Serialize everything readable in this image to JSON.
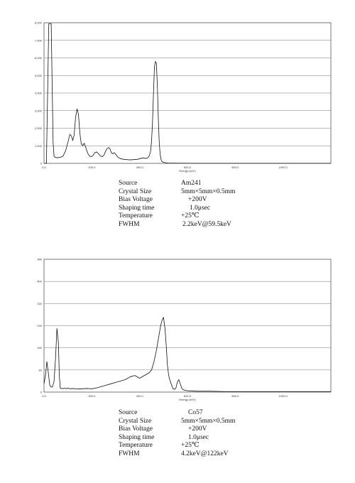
{
  "chart_data": [
    {
      "type": "line",
      "xlabel": "Energy (keV)",
      "ylabel": "",
      "xlim": [
        0,
        1200
      ],
      "ylim": [
        0,
        8000
      ],
      "xticks": [
        0,
        200,
        400,
        600,
        800,
        1000
      ],
      "xtick_labels": [
        "0.0",
        "200.0",
        "400.0",
        "600.0",
        "800.0",
        "1000.0"
      ],
      "yticks": [
        1000,
        2000,
        3000,
        4000,
        5000,
        6000,
        7000,
        8000
      ],
      "ytick_labels": [
        "1,000",
        "2,000",
        "3,000",
        "4,000",
        "5,000",
        "6,000",
        "7,000",
        "8,000"
      ],
      "grid": true,
      "series": [
        {
          "x": [
            0,
            10,
            20,
            30,
            34,
            38,
            42,
            46,
            50,
            55,
            60,
            70,
            80,
            90,
            100,
            108,
            115,
            120,
            126,
            132,
            138,
            144,
            150,
            156,
            162,
            168,
            175,
            182,
            190,
            198,
            205,
            212,
            220,
            228,
            236,
            244,
            252,
            258,
            264,
            270,
            276,
            282,
            288,
            294,
            300,
            306,
            312,
            318,
            326,
            334,
            342,
            350,
            360,
            370,
            380,
            390,
            400,
            410,
            418,
            426,
            434,
            440,
            446,
            450,
            454,
            458,
            462,
            466,
            470,
            474,
            478,
            482,
            486,
            490,
            494,
            500,
            510,
            520,
            560,
            620,
            700,
            800,
            900,
            1000,
            1100,
            1200
          ],
          "values": [
            0,
            0,
            7950,
            7950,
            4500,
            1200,
            400,
            350,
            330,
            320,
            330,
            350,
            420,
            700,
            1200,
            1650,
            1550,
            1300,
            1600,
            2600,
            3100,
            2800,
            1700,
            1100,
            1000,
            1150,
            900,
            600,
            420,
            380,
            450,
            600,
            650,
            550,
            420,
            380,
            500,
            700,
            850,
            900,
            820,
            600,
            550,
            600,
            520,
            400,
            320,
            280,
            250,
            230,
            220,
            210,
            200,
            210,
            220,
            230,
            260,
            300,
            300,
            280,
            320,
            420,
            700,
            1300,
            2400,
            4000,
            5500,
            5800,
            5700,
            4500,
            2600,
            1200,
            500,
            200,
            100,
            60,
            30,
            20,
            10,
            5,
            5,
            5,
            5,
            5,
            5,
            5
          ]
        }
      ]
    },
    {
      "type": "line",
      "xlabel": "Energy (keV)",
      "ylabel": "",
      "xlim": [
        0,
        1200
      ],
      "ylim": [
        0,
        480
      ],
      "xticks": [
        0,
        200,
        400,
        600,
        800,
        1000
      ],
      "xtick_labels": [
        "0.0",
        "200.0",
        "400.0",
        "600.0",
        "800.0",
        "1000.0"
      ],
      "yticks": [
        80,
        160,
        240,
        320,
        400,
        480
      ],
      "ytick_labels": [
        "80",
        "160",
        "240",
        "320",
        "400",
        "480"
      ],
      "grid": true,
      "series": [
        {
          "x": [
            0,
            6,
            12,
            18,
            24,
            30,
            36,
            42,
            48,
            54,
            60,
            64,
            68,
            72,
            76,
            80,
            86,
            92,
            100,
            110,
            120,
            140,
            160,
            180,
            200,
            220,
            240,
            260,
            280,
            300,
            320,
            340,
            360,
            380,
            400,
            420,
            440,
            450,
            460,
            470,
            476,
            482,
            488,
            494,
            500,
            506,
            512,
            516,
            520,
            524,
            528,
            532,
            536,
            540,
            546,
            552,
            556,
            560,
            564,
            568,
            572,
            576,
            580,
            584,
            590,
            600,
            620,
            640,
            660,
            700,
            750,
            800,
            850,
            900,
            950,
            1000,
            1050,
            1100,
            1150,
            1200
          ],
          "values": [
            30,
            60,
            110,
            70,
            25,
            18,
            20,
            40,
            120,
            230,
            180,
            60,
            15,
            12,
            14,
            12,
            15,
            12,
            14,
            12,
            13,
            11,
            12,
            13,
            12,
            15,
            20,
            25,
            30,
            35,
            40,
            45,
            55,
            60,
            50,
            60,
            70,
            80,
            110,
            150,
            180,
            210,
            240,
            260,
            270,
            230,
            160,
            100,
            70,
            50,
            40,
            30,
            20,
            12,
            10,
            15,
            30,
            40,
            45,
            35,
            25,
            15,
            10,
            8,
            6,
            5,
            4,
            3,
            3,
            3,
            2,
            2,
            2,
            2,
            2,
            2,
            2,
            2,
            2,
            2
          ]
        }
      ]
    }
  ],
  "info_tables": [
    {
      "rows": [
        {
          "label": "Source",
          "value": "Am241"
        },
        {
          "label": "Crystal Size",
          "value": "5mm×5mm×0.5mm"
        },
        {
          "label": "Bias Voltage",
          "value": "+200V"
        },
        {
          "label": "Shaping time",
          "value": "1.0μsec"
        },
        {
          "label": "Temperature",
          "value": "+25℃"
        },
        {
          "label": "FWHM",
          "value": "2.2keV@59.5keV"
        }
      ]
    },
    {
      "rows": [
        {
          "label": "Source",
          "value": "Co57"
        },
        {
          "label": "Crystal Size",
          "value": "5mm×5mm×0.5mm"
        },
        {
          "label": "Bias Voltage",
          "value": "+200V"
        },
        {
          "label": "Shaping time",
          "value": "1.0μsec"
        },
        {
          "label": "Temperature",
          "value": "+25℃"
        },
        {
          "label": "FWHM",
          "value": "4.2keV@122keV"
        }
      ]
    }
  ]
}
